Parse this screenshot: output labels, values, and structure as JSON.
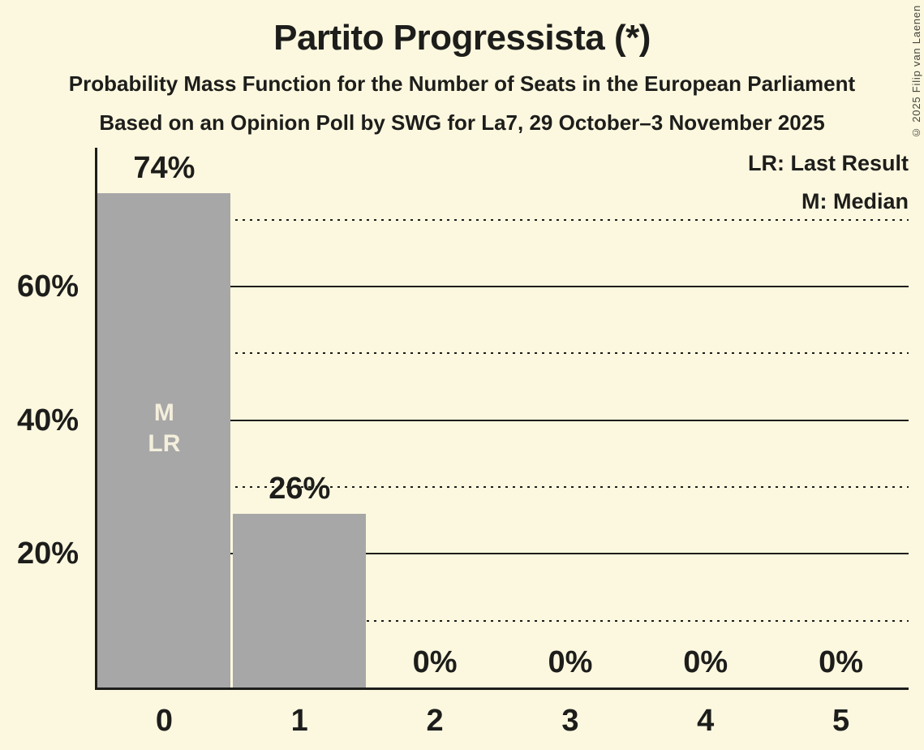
{
  "header": {
    "title": "Partito Progressista (*)",
    "subtitle": "Probability Mass Function for the Number of Seats in the European Parliament",
    "poll_details": "Based on an Opinion Poll by SWG for La7, 29 October–3 November 2025"
  },
  "legend": {
    "lr_label": "LR: Last Result",
    "m_label": "M: Median"
  },
  "copyright": "© 2025 Filip van Laenen",
  "colors": {
    "background": "#FCF8DF",
    "bar": "#A7A7A7",
    "text": "#1D1D1B",
    "axis": "#1D1D1B",
    "bar_annotation": "#F3EFDC",
    "copyright_text": "#45453C"
  },
  "chart_data": {
    "type": "bar",
    "title": "Partito Progressista (*)",
    "categories": [
      "0",
      "1",
      "2",
      "3",
      "4",
      "5"
    ],
    "values": [
      74,
      26,
      0,
      0,
      0,
      0
    ],
    "value_labels": [
      "74%",
      "26%",
      "0%",
      "0%",
      "0%",
      "0%"
    ],
    "annotations": [
      {
        "category_index": 0,
        "lines": [
          "M",
          "LR"
        ]
      }
    ],
    "yticks": [
      {
        "value": 60,
        "label": "60%"
      },
      {
        "value": 40,
        "label": "40%"
      },
      {
        "value": 20,
        "label": "20%"
      }
    ],
    "gridlines_major": [
      20,
      40,
      60
    ],
    "gridlines_minor": [
      10,
      30,
      50,
      70
    ],
    "ylim": [
      0,
      80.8
    ],
    "xlabel": "",
    "ylabel": "",
    "grid": "horizontal-only",
    "legend_position": "top-right"
  }
}
